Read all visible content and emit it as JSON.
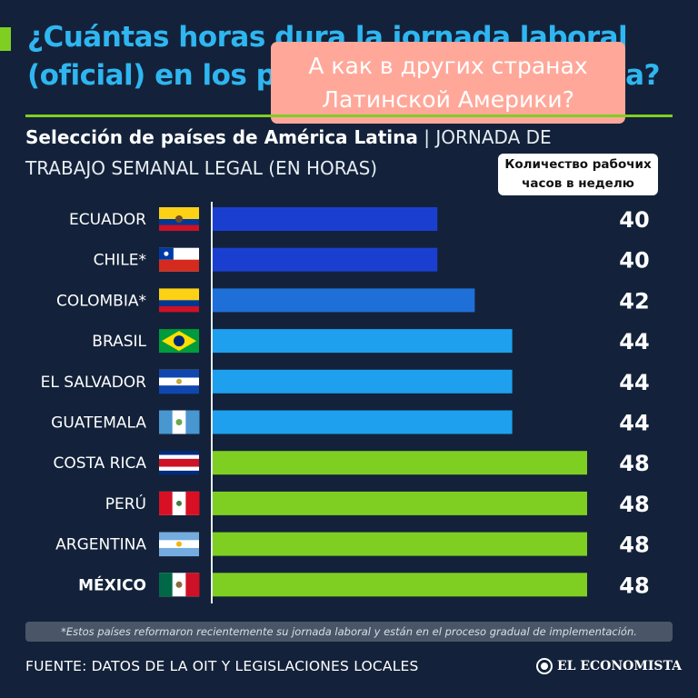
{
  "headline": {
    "line1": "¿Cuántas horas dura la jornada laboral",
    "line2": "(oficial) en los países de América Latina?"
  },
  "overlay": {
    "line1": "А как в других странах",
    "line2": "Латинской Америки?"
  },
  "subtitle": {
    "bold": "Selección de países de América Latina",
    "separator": " | ",
    "light_part1": "JORNADA DE",
    "light_part2": "TRABAJO SEMANAL LEGAL (EN HORAS)"
  },
  "units_label": {
    "line1": "Количество рабочих",
    "line2": "часов в неделю"
  },
  "colors": {
    "background": "#13223a",
    "headline": "#2fb6f0",
    "accent_green": "#7fcf22",
    "bar_40": "#1a3fd0",
    "bar_42": "#1e6fd8",
    "bar_44": "#1ea0ee",
    "bar_48": "#7fcf22",
    "overlay": "#ffa89a"
  },
  "chart_data": {
    "type": "bar",
    "orientation": "horizontal",
    "categories": [
      "ECUADOR",
      "CHILE*",
      "COLOMBIA*",
      "BRASIL",
      "EL SALVADOR",
      "GUATEMALA",
      "COSTA RICA",
      "PERÚ",
      "ARGENTINA",
      "MÉXICO"
    ],
    "values": [
      40,
      40,
      42,
      44,
      44,
      44,
      48,
      48,
      48,
      48
    ],
    "value_labels": [
      "40",
      "40",
      "42",
      "44",
      "44",
      "44",
      "48",
      "48",
      "48",
      "48"
    ],
    "flags": [
      "ecuador-flag",
      "chile-flag",
      "colombia-flag",
      "brasil-flag",
      "el-salvador-flag",
      "guatemala-flag",
      "costa-rica-flag",
      "peru-flag",
      "argentina-flag",
      "mexico-flag"
    ],
    "highlight": "MÉXICO",
    "grid": false,
    "title": "",
    "xlabel": "",
    "ylabel": ""
  },
  "footnote": "*Estos países reformaron recientemente su jornada laboral y están en el proceso gradual de implementación.",
  "source": "FUENTE: DATOS DE LA OIT Y LEGISLACIONES LOCALES",
  "logo": "EL ECONOMISTA"
}
